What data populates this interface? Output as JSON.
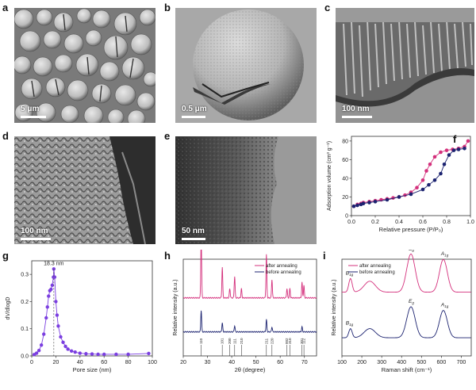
{
  "panels": {
    "a": {
      "label": "a",
      "scale": "5 μm"
    },
    "b": {
      "label": "b",
      "scale": "0.5 μm"
    },
    "c": {
      "label": "c",
      "scale": "100 nm"
    },
    "d": {
      "label": "d",
      "scale": "100 nm"
    },
    "e": {
      "label": "e",
      "scale": "50 nm"
    },
    "f": {
      "label": "f"
    },
    "g": {
      "label": "g"
    },
    "h": {
      "label": "h"
    },
    "i": {
      "label": "i"
    }
  },
  "colors": {
    "magenta": "#d4307c",
    "navy": "#1c2370",
    "purple": "#7b3fe0"
  },
  "chart_data": [
    {
      "id": "f",
      "type": "scatter",
      "title": "",
      "xlabel": "Relative pressure (P/P₀)",
      "ylabel": "Adsorption volume (cm³ g⁻¹)",
      "xlim": [
        0,
        1.0
      ],
      "ylim": [
        0,
        85
      ],
      "xticks": [
        "0.0",
        "0.2",
        "0.4",
        "0.6",
        "0.8",
        "1.0"
      ],
      "yticks": [
        "0",
        "20",
        "40",
        "60",
        "80"
      ],
      "series": [
        {
          "color": "#d4307c",
          "x": [
            0.02,
            0.05,
            0.08,
            0.1,
            0.15,
            0.2,
            0.25,
            0.3,
            0.35,
            0.4,
            0.45,
            0.5,
            0.55,
            0.6,
            0.63,
            0.66,
            0.7,
            0.75,
            0.8,
            0.85,
            0.9,
            0.95,
            0.98
          ],
          "y": [
            10,
            12,
            13,
            14,
            15,
            16,
            17,
            18,
            19,
            20,
            22,
            25,
            30,
            38,
            48,
            55,
            63,
            68,
            70,
            71,
            72,
            74,
            80
          ]
        },
        {
          "color": "#1c2370",
          "x": [
            0.02,
            0.05,
            0.08,
            0.1,
            0.15,
            0.2,
            0.3,
            0.4,
            0.5,
            0.6,
            0.65,
            0.7,
            0.75,
            0.78,
            0.82,
            0.86,
            0.9,
            0.95
          ],
          "y": [
            10,
            11,
            12,
            13,
            14,
            15,
            17,
            20,
            23,
            28,
            33,
            38,
            45,
            55,
            65,
            70,
            71,
            72
          ]
        }
      ]
    },
    {
      "id": "g",
      "type": "line",
      "xlabel": "Pore size (nm)",
      "ylabel": "dV/dlogD",
      "annotation": "18.3 nm",
      "xlim": [
        0,
        100
      ],
      "ylim": [
        0,
        0.35
      ],
      "xticks": [
        "0",
        "20",
        "40",
        "60",
        "80",
        "100"
      ],
      "yticks": [
        "0.0",
        "0.1",
        "0.2",
        "0.3"
      ],
      "series": [
        {
          "color": "#7b3fe0",
          "x": [
            2,
            4,
            6,
            8,
            10,
            12,
            13,
            14,
            15,
            16,
            17,
            18,
            18.3,
            19,
            20,
            21,
            22,
            24,
            26,
            28,
            30,
            33,
            36,
            40,
            45,
            50,
            55,
            60,
            70,
            80,
            97
          ],
          "y": [
            0.005,
            0.01,
            0.02,
            0.04,
            0.08,
            0.14,
            0.18,
            0.22,
            0.24,
            0.245,
            0.26,
            0.29,
            0.32,
            0.29,
            0.2,
            0.15,
            0.11,
            0.07,
            0.05,
            0.035,
            0.025,
            0.018,
            0.014,
            0.01,
            0.008,
            0.007,
            0.006,
            0.006,
            0.006,
            0.006,
            0.009
          ]
        }
      ]
    },
    {
      "id": "h",
      "type": "line",
      "xlabel": "2θ (degree)",
      "ylabel": "Relative intensity (a.u.)",
      "xlim": [
        20,
        75
      ],
      "xticks": [
        "20",
        "30",
        "40",
        "50",
        "60",
        "70"
      ],
      "legend": [
        "after annealing",
        "before annealing"
      ],
      "series": [
        {
          "name": "after annealing",
          "color": "#d4307c",
          "offset": 0.55,
          "peaks": [
            [
              27.4,
              1.0
            ],
            [
              36.1,
              0.5
            ],
            [
              39.2,
              0.15
            ],
            [
              41.2,
              0.35
            ],
            [
              44.0,
              0.15
            ],
            [
              54.3,
              0.7
            ],
            [
              56.6,
              0.3
            ],
            [
              62.8,
              0.15
            ],
            [
              64.0,
              0.15
            ],
            [
              69.0,
              0.25
            ],
            [
              69.8,
              0.2
            ]
          ]
        },
        {
          "name": "before annealing",
          "color": "#1c2370",
          "offset": 0.0,
          "peaks": [
            [
              27.4,
              0.35
            ],
            [
              36.1,
              0.15
            ],
            [
              41.2,
              0.1
            ],
            [
              54.3,
              0.2
            ],
            [
              56.6,
              0.08
            ],
            [
              69.0,
              0.08
            ]
          ]
        }
      ],
      "ref_lines": [
        {
          "x": 27.4,
          "label": "110"
        },
        {
          "x": 36.1,
          "label": "101"
        },
        {
          "x": 39.2,
          "label": "200"
        },
        {
          "x": 41.2,
          "label": "111"
        },
        {
          "x": 44.0,
          "label": "210"
        },
        {
          "x": 54.3,
          "label": "211"
        },
        {
          "x": 56.6,
          "label": "220"
        },
        {
          "x": 62.8,
          "label": "002"
        },
        {
          "x": 64.0,
          "label": "310"
        },
        {
          "x": 69.0,
          "label": "301"
        },
        {
          "x": 69.8,
          "label": "112"
        }
      ]
    },
    {
      "id": "i",
      "type": "line",
      "xlabel": "Raman shift (cm⁻¹)",
      "ylabel": "Relative intensity (a.u.)",
      "xlim": [
        100,
        750
      ],
      "xticks": [
        "100",
        "200",
        "300",
        "400",
        "500",
        "600",
        "700"
      ],
      "legend": [
        "after annealing",
        "before annealing"
      ],
      "series": [
        {
          "name": "after annealing",
          "color": "#d4307c",
          "offset": 0.5,
          "peaks": [
            [
              143,
              0.15,
              12
            ],
            [
              240,
              0.12,
              40
            ],
            [
              447,
              0.42,
              30
            ],
            [
              610,
              0.36,
              28
            ]
          ]
        },
        {
          "name": "before annealing",
          "color": "#1c2370",
          "offset": 0.0,
          "peaks": [
            [
              143,
              0.1,
              12
            ],
            [
              240,
              0.1,
              40
            ],
            [
              447,
              0.34,
              30
            ],
            [
              610,
              0.3,
              28
            ]
          ]
        }
      ],
      "peak_labels": {
        "after": [
          {
            "x": 143,
            "text": "B",
            "sub": "1g"
          },
          {
            "x": 447,
            "text": "E",
            "sub": "g"
          },
          {
            "x": 610,
            "text": "A",
            "sub": "1g"
          }
        ],
        "before": [
          {
            "x": 143,
            "text": "B",
            "sub": "1g"
          },
          {
            "x": 447,
            "text": "E",
            "sub": "g"
          },
          {
            "x": 610,
            "text": "A",
            "sub": "1g"
          }
        ]
      }
    }
  ]
}
